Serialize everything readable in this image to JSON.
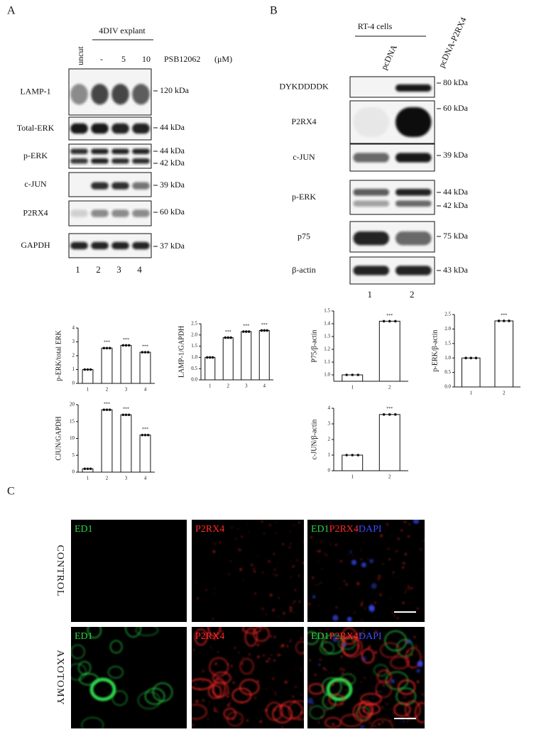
{
  "panel_a": {
    "label": "A",
    "uncut": "uncut",
    "treatment": "4DIV  explant",
    "doses": [
      "-",
      "5",
      "10"
    ],
    "drug": "PSB12062",
    "unit": "(μM)",
    "blots": [
      {
        "name": "LAMP-1",
        "markers": [
          "120 kDa"
        ]
      },
      {
        "name": "Total-ERK",
        "markers": [
          "44 kDa"
        ]
      },
      {
        "name": "p-ERK",
        "markers": [
          "44 kDa",
          "42 kDa"
        ]
      },
      {
        "name": "c-JUN",
        "markers": [
          "39 kDa"
        ]
      },
      {
        "name": "P2RX4",
        "markers": [
          "60 kDa"
        ]
      },
      {
        "name": "GAPDH",
        "markers": [
          "37 kDa"
        ]
      }
    ],
    "lanes": [
      "1",
      "2",
      "3",
      "4"
    ]
  },
  "panel_b": {
    "label": "B",
    "cells": "RT-4 cells",
    "conditions": [
      "pcDNA",
      "pcDNA-P2RX4"
    ],
    "blots": [
      {
        "name": "DYKDDDDK",
        "markers": [
          "80 kDa"
        ]
      },
      {
        "name": "P2RX4",
        "markers": [
          "60 kDa"
        ]
      },
      {
        "name": "c-JUN",
        "markers": [
          "39 kDa"
        ]
      },
      {
        "name": "p-ERK",
        "markers": [
          "44 kDa",
          "42 kDa"
        ]
      },
      {
        "name": "p75",
        "markers": [
          "75 kDa"
        ]
      },
      {
        "name": "β-actin",
        "markers": [
          "43 kDa"
        ]
      }
    ],
    "lanes": [
      "1",
      "2"
    ]
  },
  "panel_c": {
    "label": "C",
    "rows": [
      "CONTROL",
      "AXOTOMY"
    ],
    "channels": [
      "ED1",
      "P2RX4"
    ],
    "merge": [
      "ED1",
      "P2RX4",
      "DAPI"
    ]
  },
  "chart_data": [
    {
      "type": "bar",
      "ylabel": "p-ERK/total ERK",
      "categories": [
        "1",
        "2",
        "3",
        "4"
      ],
      "values": [
        1,
        2.55,
        2.75,
        2.25
      ],
      "significance": [
        null,
        "***",
        "***",
        "***"
      ],
      "ylim": [
        0,
        4
      ],
      "yticks": [
        0,
        1,
        2,
        3,
        4
      ]
    },
    {
      "type": "bar",
      "ylabel": "LAMP-1/GAPDH",
      "categories": [
        "1",
        "2",
        "3",
        "4"
      ],
      "values": [
        1,
        1.88,
        2.15,
        2.2
      ],
      "significance": [
        null,
        "***",
        "***",
        "***"
      ],
      "ylim": [
        0,
        2.5
      ],
      "yticks": [
        {
          "value": 0,
          "label": "0.0"
        },
        0.5,
        {
          "value": 1,
          "label": "1.0"
        },
        1.5,
        {
          "value": 2,
          "label": "2.0"
        },
        2.5
      ]
    },
    {
      "type": "bar",
      "ylabel": "CJUN/GAPDH",
      "categories": [
        "1",
        "2",
        "3",
        "4"
      ],
      "values": [
        1,
        18.5,
        17,
        11
      ],
      "significance": [
        null,
        "***",
        "***",
        "***"
      ],
      "ylim": [
        0,
        20
      ],
      "yticks": [
        0,
        5,
        10,
        15,
        20
      ]
    },
    {
      "type": "bar",
      "ylabel": "P75/β-actin",
      "categories": [
        "1",
        "2"
      ],
      "values": [
        1,
        1.42
      ],
      "significance": [
        null,
        "***"
      ],
      "ylim": [
        0.95,
        1.5
      ],
      "yticks": [
        {
          "value": 1,
          "label": "1.0"
        },
        1.1,
        1.2,
        1.3,
        1.4,
        1.5
      ]
    },
    {
      "type": "bar",
      "ylabel": "p-ERK/β-actin",
      "categories": [
        "1",
        "2"
      ],
      "values": [
        1,
        2.28
      ],
      "significance": [
        null,
        "***"
      ],
      "ylim": [
        0,
        2.5
      ],
      "yticks": [
        {
          "value": 0,
          "label": "0.0"
        },
        0.5,
        {
          "value": 1,
          "label": "1.0"
        },
        1.5,
        {
          "value": 2,
          "label": "2.0"
        },
        2.5
      ]
    },
    {
      "type": "bar",
      "ylabel": "c-JUN/β-actin",
      "categories": [
        "1",
        "2"
      ],
      "values": [
        1,
        3.6
      ],
      "significance": [
        null,
        "***"
      ],
      "ylim": [
        0,
        4
      ],
      "yticks": [
        0,
        1,
        2,
        3,
        4
      ]
    }
  ]
}
